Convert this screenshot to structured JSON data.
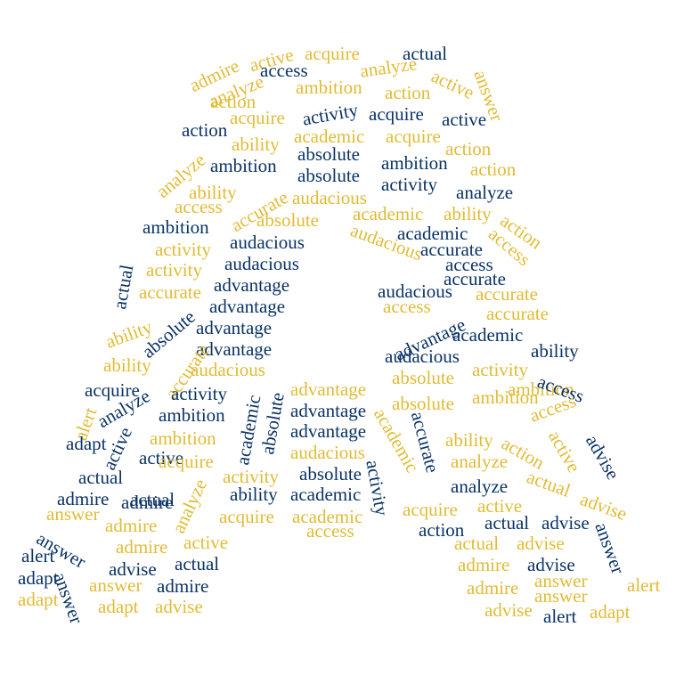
{
  "colors": {
    "navy": "#0a3366",
    "gold": "#e1bb35",
    "background": "#ffffff"
  },
  "words": [
    {
      "t": "admire",
      "c": "gold"
    },
    {
      "t": "active",
      "c": "gold"
    },
    {
      "t": "acquire",
      "c": "gold"
    },
    {
      "t": "actual",
      "c": "navy"
    },
    {
      "t": "access",
      "c": "navy"
    },
    {
      "t": "analyze",
      "c": "gold"
    },
    {
      "t": "answer",
      "c": "gold"
    },
    {
      "t": "analyze",
      "c": "gold"
    },
    {
      "t": "ambition",
      "c": "gold"
    },
    {
      "t": "action",
      "c": "gold"
    },
    {
      "t": "active",
      "c": "gold"
    },
    {
      "t": "action",
      "c": "gold"
    },
    {
      "t": "acquire",
      "c": "gold"
    },
    {
      "t": "activity",
      "c": "navy"
    },
    {
      "t": "acquire",
      "c": "navy"
    },
    {
      "t": "active",
      "c": "navy"
    },
    {
      "t": "action",
      "c": "navy"
    },
    {
      "t": "academic",
      "c": "gold"
    },
    {
      "t": "acquire",
      "c": "gold"
    },
    {
      "t": "ability",
      "c": "gold"
    },
    {
      "t": "action",
      "c": "gold"
    },
    {
      "t": "ambition",
      "c": "navy"
    },
    {
      "t": "absolute",
      "c": "navy"
    },
    {
      "t": "ambition",
      "c": "navy"
    },
    {
      "t": "action",
      "c": "gold"
    },
    {
      "t": "analyze",
      "c": "gold"
    },
    {
      "t": "absolute",
      "c": "navy"
    },
    {
      "t": "activity",
      "c": "navy"
    },
    {
      "t": "analyze",
      "c": "navy"
    },
    {
      "t": "ability",
      "c": "gold"
    },
    {
      "t": "accurate",
      "c": "gold"
    },
    {
      "t": "audacious",
      "c": "gold"
    },
    {
      "t": "access",
      "c": "gold"
    },
    {
      "t": "academic",
      "c": "gold"
    },
    {
      "t": "ability",
      "c": "gold"
    },
    {
      "t": "action",
      "c": "gold"
    },
    {
      "t": "absolute",
      "c": "gold"
    },
    {
      "t": "ambition",
      "c": "navy"
    },
    {
      "t": "audacious",
      "c": "gold"
    },
    {
      "t": "academic",
      "c": "navy"
    },
    {
      "t": "access",
      "c": "gold"
    },
    {
      "t": "activity",
      "c": "gold"
    },
    {
      "t": "audacious",
      "c": "navy"
    },
    {
      "t": "accurate",
      "c": "navy"
    },
    {
      "t": "access",
      "c": "navy"
    },
    {
      "t": "actual",
      "c": "navy"
    },
    {
      "t": "activity",
      "c": "gold"
    },
    {
      "t": "audacious",
      "c": "navy"
    },
    {
      "t": "accurate",
      "c": "navy"
    },
    {
      "t": "accurate",
      "c": "gold"
    },
    {
      "t": "advantage",
      "c": "navy"
    },
    {
      "t": "audacious",
      "c": "navy"
    },
    {
      "t": "accurate",
      "c": "gold"
    },
    {
      "t": "ability",
      "c": "gold"
    },
    {
      "t": "absolute",
      "c": "navy"
    },
    {
      "t": "advantage",
      "c": "navy"
    },
    {
      "t": "access",
      "c": "gold"
    },
    {
      "t": "advantage",
      "c": "navy"
    },
    {
      "t": "accurate",
      "c": "gold"
    },
    {
      "t": "advantage",
      "c": "navy"
    },
    {
      "t": "advantage",
      "c": "navy"
    },
    {
      "t": "academic",
      "c": "navy"
    },
    {
      "t": "ability",
      "c": "navy"
    },
    {
      "t": "accurate",
      "c": "gold"
    },
    {
      "t": "ability",
      "c": "gold"
    },
    {
      "t": "audacious",
      "c": "gold"
    },
    {
      "t": "audacious",
      "c": "navy"
    },
    {
      "t": "activity",
      "c": "gold"
    },
    {
      "t": "acquire",
      "c": "navy"
    },
    {
      "t": "activity",
      "c": "navy"
    },
    {
      "t": "advantage",
      "c": "gold"
    },
    {
      "t": "absolute",
      "c": "gold"
    },
    {
      "t": "ambition",
      "c": "gold"
    },
    {
      "t": "access",
      "c": "navy"
    },
    {
      "t": "alert",
      "c": "gold"
    },
    {
      "t": "analyze",
      "c": "navy"
    },
    {
      "t": "ambition",
      "c": "navy"
    },
    {
      "t": "academic",
      "c": "navy"
    },
    {
      "t": "absolute",
      "c": "navy"
    },
    {
      "t": "advantage",
      "c": "navy"
    },
    {
      "t": "absolute",
      "c": "gold"
    },
    {
      "t": "ambition",
      "c": "gold"
    },
    {
      "t": "access",
      "c": "gold"
    },
    {
      "t": "active",
      "c": "navy"
    },
    {
      "t": "adapt",
      "c": "navy"
    },
    {
      "t": "ambition",
      "c": "gold"
    },
    {
      "t": "advantage",
      "c": "navy"
    },
    {
      "t": "accurate",
      "c": "navy"
    },
    {
      "t": "academic",
      "c": "gold"
    },
    {
      "t": "ability",
      "c": "gold"
    },
    {
      "t": "action",
      "c": "gold"
    },
    {
      "t": "active",
      "c": "gold"
    },
    {
      "t": "advise",
      "c": "navy"
    },
    {
      "t": "actual",
      "c": "navy"
    },
    {
      "t": "active",
      "c": "navy"
    },
    {
      "t": "acquire",
      "c": "gold"
    },
    {
      "t": "audacious",
      "c": "gold"
    },
    {
      "t": "activity",
      "c": "navy"
    },
    {
      "t": "analyze",
      "c": "gold"
    },
    {
      "t": "activity",
      "c": "gold"
    },
    {
      "t": "absolute",
      "c": "navy"
    },
    {
      "t": "actual",
      "c": "gold"
    },
    {
      "t": "admire",
      "c": "navy"
    },
    {
      "t": "admire",
      "c": "navy"
    },
    {
      "t": "actual",
      "c": "navy"
    },
    {
      "t": "analyze",
      "c": "gold"
    },
    {
      "t": "ability",
      "c": "navy"
    },
    {
      "t": "academic",
      "c": "navy"
    },
    {
      "t": "analyze",
      "c": "navy"
    },
    {
      "t": "advise",
      "c": "gold"
    },
    {
      "t": "answer",
      "c": "gold"
    },
    {
      "t": "admire",
      "c": "gold"
    },
    {
      "t": "acquire",
      "c": "gold"
    },
    {
      "t": "academic",
      "c": "gold"
    },
    {
      "t": "acquire",
      "c": "gold"
    },
    {
      "t": "active",
      "c": "gold"
    },
    {
      "t": "actual",
      "c": "navy"
    },
    {
      "t": "advise",
      "c": "navy"
    },
    {
      "t": "answer",
      "c": "navy"
    },
    {
      "t": "access",
      "c": "gold"
    },
    {
      "t": "action",
      "c": "navy"
    },
    {
      "t": "admire",
      "c": "gold"
    },
    {
      "t": "active",
      "c": "gold"
    },
    {
      "t": "actual",
      "c": "gold"
    },
    {
      "t": "advise",
      "c": "gold"
    },
    {
      "t": "answer",
      "c": "navy"
    },
    {
      "t": "alert",
      "c": "navy"
    },
    {
      "t": "actual",
      "c": "navy"
    },
    {
      "t": "advise",
      "c": "navy"
    },
    {
      "t": "admire",
      "c": "gold"
    },
    {
      "t": "advise",
      "c": "navy"
    },
    {
      "t": "adapt",
      "c": "navy"
    },
    {
      "t": "answer",
      "c": "navy"
    },
    {
      "t": "answer",
      "c": "gold"
    },
    {
      "t": "admire",
      "c": "navy"
    },
    {
      "t": "admire",
      "c": "gold"
    },
    {
      "t": "answer",
      "c": "gold"
    },
    {
      "t": "answer",
      "c": "gold"
    },
    {
      "t": "alert",
      "c": "gold"
    },
    {
      "t": "adapt",
      "c": "gold"
    },
    {
      "t": "adapt",
      "c": "gold"
    },
    {
      "t": "advise",
      "c": "gold"
    },
    {
      "t": "advise",
      "c": "gold"
    },
    {
      "t": "alert",
      "c": "navy"
    },
    {
      "t": "adapt",
      "c": "gold"
    }
  ]
}
